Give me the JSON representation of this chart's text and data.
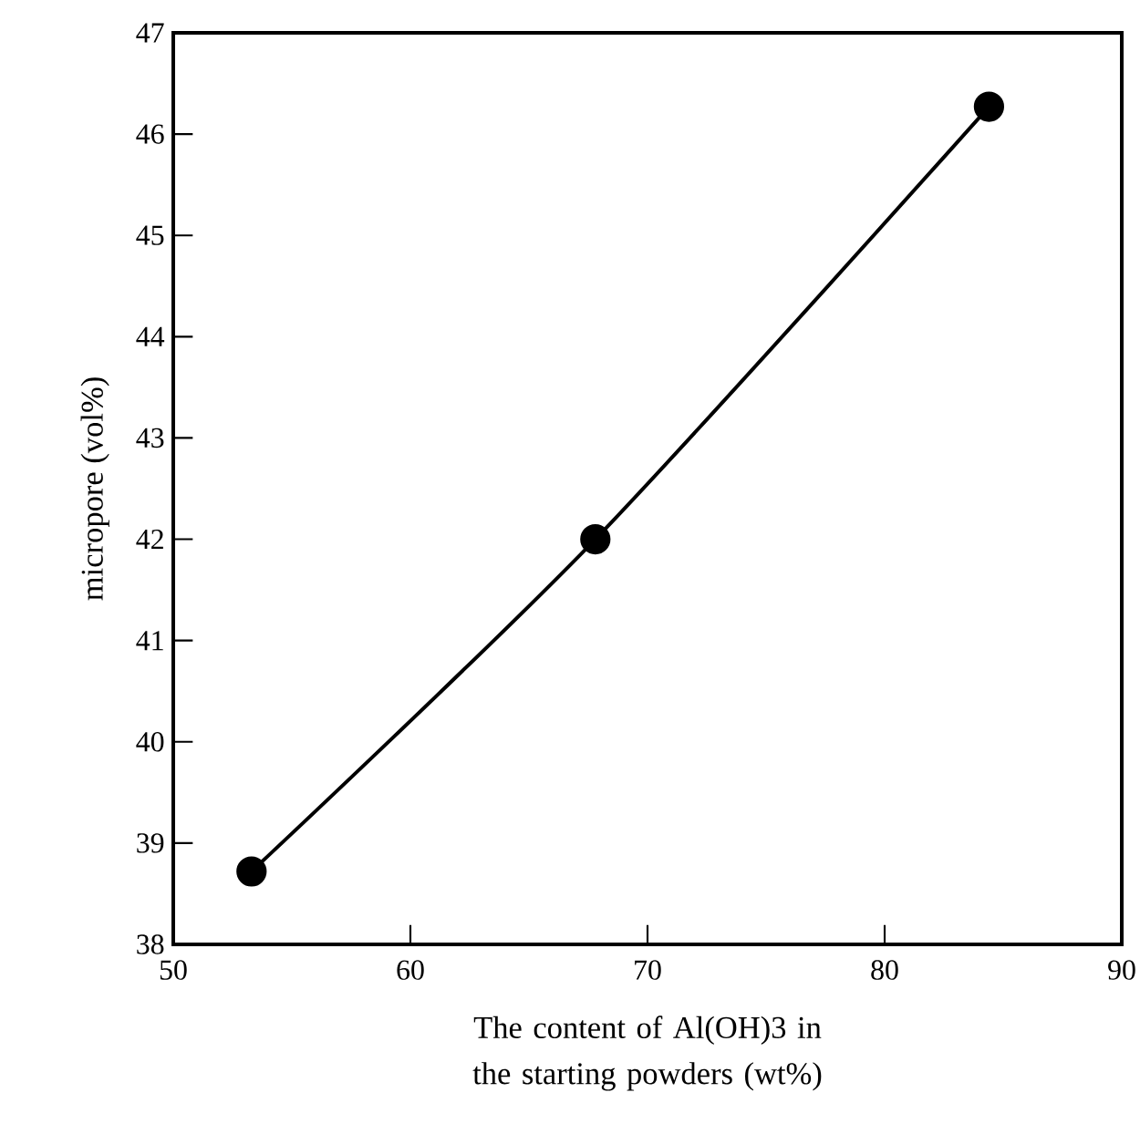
{
  "chart_data": {
    "type": "line",
    "xlabel": "The content of Al(OH)3 in the starting powders  (wt%)",
    "ylabel": "micropore (vol%)",
    "x": [
      53.3,
      67.8,
      84.4
    ],
    "series": [
      {
        "color": "#000000",
        "values": [
          38.72,
          42.0,
          46.27
        ]
      }
    ],
    "xlim": [
      50,
      90
    ],
    "ylim": [
      38,
      47
    ],
    "xticks": [
      50,
      60,
      70,
      80,
      90
    ],
    "yticks": [
      38,
      39,
      40,
      41,
      42,
      43,
      44,
      45,
      46,
      47
    ],
    "marker": "circle",
    "line_style": "solid"
  }
}
